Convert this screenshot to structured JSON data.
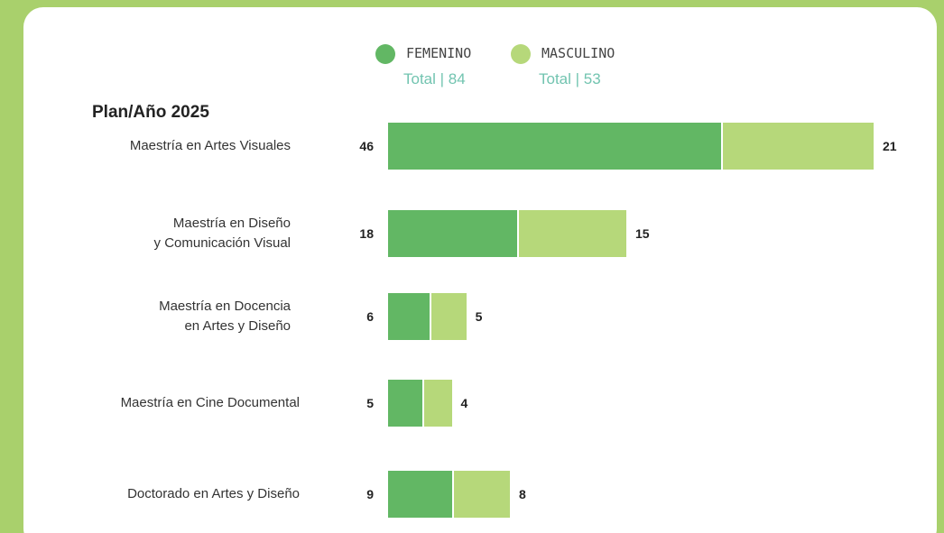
{
  "chart_data": {
    "type": "stacked-barh",
    "title": "Plan/Año 2025",
    "categories": [
      "Maestría en Artes Visuales",
      "Maestría en Diseño\ny Comunicación Visual",
      "Maestría en Docencia\nen Artes y Diseño",
      "Maestría en Cine Documental",
      "Doctorado en Artes y Diseño"
    ],
    "series": [
      {
        "name": "FEMENINO",
        "color": "#62b764",
        "total_label": "Total | 84",
        "values": [
          46,
          18,
          6,
          5,
          9
        ]
      },
      {
        "name": "MASCULINO",
        "color": "#b6d87a",
        "total_label": "Total | 53",
        "values": [
          21,
          15,
          5,
          4,
          8
        ]
      }
    ],
    "legend": "top"
  }
}
